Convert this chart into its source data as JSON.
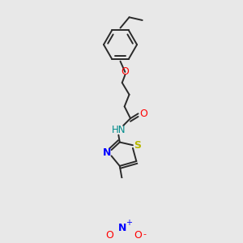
{
  "background_color": "#e8e8e8",
  "bond_color": "#2a2a2a",
  "bond_width": 1.4,
  "figsize": [
    3.0,
    3.0
  ],
  "dpi": 100,
  "colors": {
    "O": "#ff0000",
    "N": "#0000ff",
    "S": "#b8b800",
    "HN": "#008b8b",
    "C": "#2a2a2a"
  }
}
